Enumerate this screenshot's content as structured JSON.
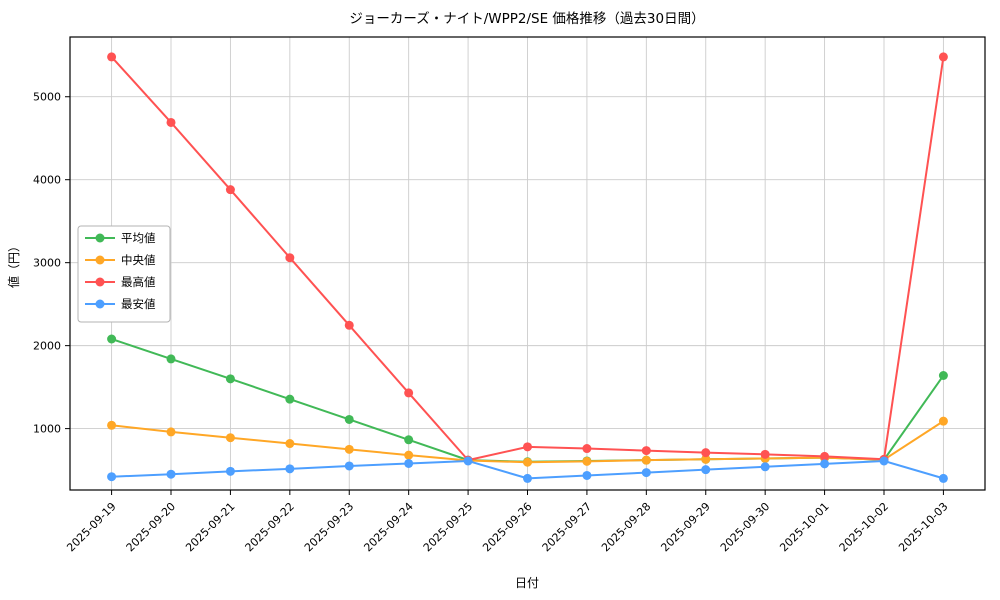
{
  "chart_data": {
    "type": "line",
    "title": "ジョーカーズ・ナイト/WPP2/SE 価格推移（過去30日間）",
    "xlabel": "日付",
    "ylabel": "値（円）",
    "x": [
      "2025-09-19",
      "2025-09-20",
      "2025-09-21",
      "2025-09-22",
      "2025-09-23",
      "2025-09-24",
      "2025-09-25",
      "2025-09-26",
      "2025-09-27",
      "2025-09-28",
      "2025-09-29",
      "2025-09-30",
      "2025-10-01",
      "2025-10-02",
      "2025-10-03"
    ],
    "series": [
      {
        "name": "平均値",
        "color": "#41b957",
        "values": [
          2080,
          1840,
          1600,
          1355,
          1110,
          865,
          620,
          600,
          610,
          620,
          630,
          640,
          650,
          625,
          1640
        ]
      },
      {
        "name": "中央値",
        "color": "#ffa726",
        "values": [
          1040,
          960,
          890,
          820,
          750,
          680,
          615,
          595,
          605,
          620,
          630,
          640,
          650,
          625,
          1090
        ]
      },
      {
        "name": "最高値",
        "color": "#ff5252",
        "values": [
          5480,
          4690,
          3880,
          3060,
          2245,
          1430,
          620,
          780,
          760,
          735,
          710,
          690,
          665,
          630,
          5480
        ]
      },
      {
        "name": "最安値",
        "color": "#4d9fff",
        "values": [
          420,
          450,
          485,
          515,
          550,
          580,
          610,
          400,
          435,
          470,
          505,
          540,
          575,
          610,
          400
        ]
      }
    ],
    "legend": [
      "平均値",
      "中央値",
      "最高値",
      "最安値"
    ],
    "legend_position": "left-middle",
    "yticks": [
      1000,
      2000,
      3000,
      4000,
      5000
    ],
    "ylim": [
      260,
      5720
    ],
    "grid": true,
    "grid_color": "#cccccc",
    "axis_color": "#000000"
  }
}
